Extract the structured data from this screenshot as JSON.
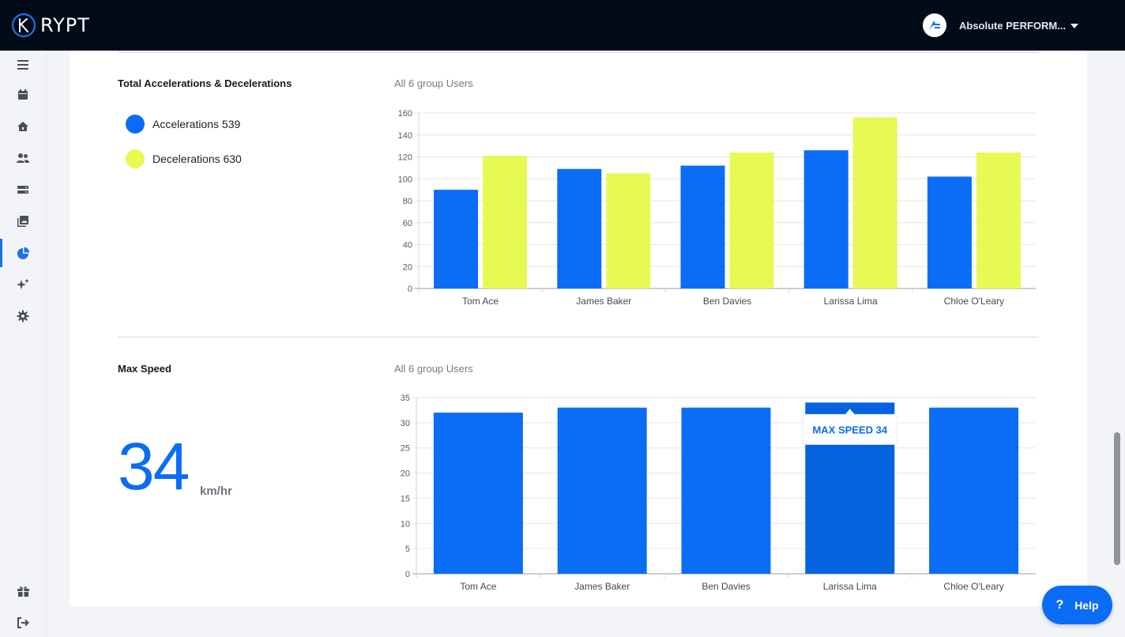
{
  "app": {
    "logo_text": "RYPT"
  },
  "header": {
    "org_name": "Absolute PERFORM..."
  },
  "sidebar": {
    "items": [
      {
        "name": "menu-icon",
        "active": false
      },
      {
        "name": "calendar-icon",
        "active": false
      },
      {
        "name": "home-icon",
        "active": false
      },
      {
        "name": "users-icon",
        "active": false
      },
      {
        "name": "storage-icon",
        "active": false
      },
      {
        "name": "gallery-icon",
        "active": false
      },
      {
        "name": "pie-chart-icon",
        "active": true
      },
      {
        "name": "sparkles-icon",
        "active": false
      },
      {
        "name": "gear-icon",
        "active": false
      },
      {
        "name": "gift-icon",
        "active": false
      },
      {
        "name": "logout-icon",
        "active": false
      }
    ]
  },
  "accel_section": {
    "title": "Total Accelerations & Decelerations",
    "subtitle": "All 6 group Users",
    "legend": [
      {
        "label": "Accelerations 539",
        "color": "#0b6df5"
      },
      {
        "label": "Decelerations 630",
        "color": "#e6fa53"
      }
    ]
  },
  "speed_section": {
    "title": "Max Speed",
    "subtitle": "All 6 group Users",
    "value": "34",
    "unit": "km/hr",
    "tooltip": "MAX SPEED 34"
  },
  "help": {
    "label": "Help",
    "icon": "?"
  },
  "chart_data": [
    {
      "type": "bar",
      "categories": [
        "Tom Ace",
        "James Baker",
        "Ben Davies",
        "Larissa Lima",
        "Chloe O'Leary"
      ],
      "series": [
        {
          "name": "Accelerations",
          "color": "#0b6df5",
          "values": [
            90,
            109,
            112,
            126,
            102
          ]
        },
        {
          "name": "Decelerations",
          "color": "#e6fa53",
          "values": [
            121,
            105,
            124,
            156,
            124
          ]
        }
      ],
      "ylim": [
        0,
        160
      ],
      "yticks": [
        0,
        20,
        40,
        60,
        80,
        100,
        120,
        140,
        160
      ],
      "grid": true
    },
    {
      "type": "bar",
      "categories": [
        "Tom Ace",
        "James Baker",
        "Ben Davies",
        "Larissa Lima",
        "Chloe O'Leary"
      ],
      "series": [
        {
          "color": "#0b6df5",
          "values": [
            32,
            33,
            33,
            34,
            33
          ]
        }
      ],
      "highlight_index": 3,
      "highlight_color": "#0563e0",
      "ylim": [
        0,
        35
      ],
      "yticks": [
        0,
        5,
        10,
        15,
        20,
        25,
        30,
        35
      ],
      "grid": true
    }
  ]
}
